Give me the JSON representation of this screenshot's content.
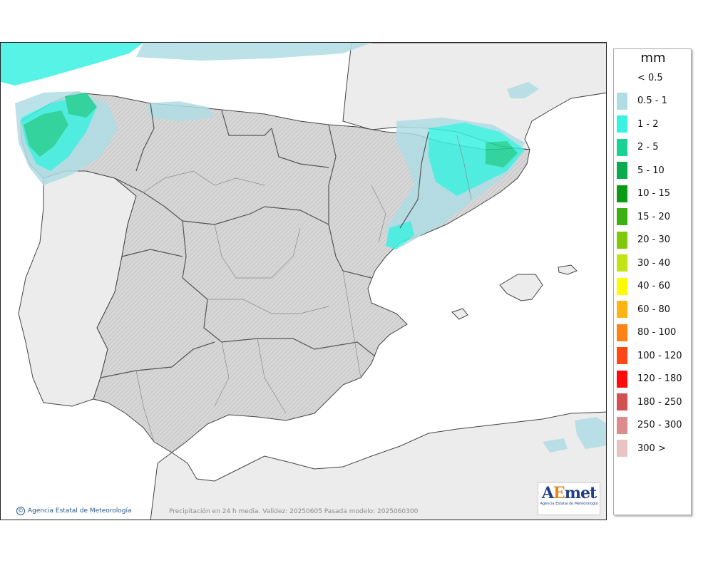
{
  "legend": {
    "unit": "mm",
    "items": [
      {
        "label": "< 0.5",
        "color": "#ffffff"
      },
      {
        "label": "0.5 - 1",
        "color": "#b0dde4"
      },
      {
        "label": "1 - 2",
        "color": "#3af2e2"
      },
      {
        "label": "2 - 5",
        "color": "#19d393"
      },
      {
        "label": "5 - 10",
        "color": "#0aaa4e"
      },
      {
        "label": "10 - 15",
        "color": "#0a9a14"
      },
      {
        "label": "15 - 20",
        "color": "#3ab014"
      },
      {
        "label": "20 - 30",
        "color": "#80c80a"
      },
      {
        "label": "30 - 40",
        "color": "#c0e414"
      },
      {
        "label": "40 - 60",
        "color": "#fffb00"
      },
      {
        "label": "60 - 80",
        "color": "#ffb414"
      },
      {
        "label": "80 - 100",
        "color": "#ff8214"
      },
      {
        "label": "100 - 120",
        "color": "#ff4614"
      },
      {
        "label": "120 - 180",
        "color": "#ff0a0a"
      },
      {
        "label": "180 - 250",
        "color": "#d25050"
      },
      {
        "label": "250 - 300",
        "color": "#dc8c8c"
      },
      {
        "label": "300 >",
        "color": "#ecc3c3"
      }
    ]
  },
  "footer": {
    "credit": "Agencia Estatal de Meteorología",
    "validity": "Precipitación en 24 h media. Validez: 20250605 Pasada modelo: 2025060300"
  },
  "logo": {
    "wordmark": "AEmet",
    "subtitle": "Agencia Estatal de Meteorología"
  }
}
